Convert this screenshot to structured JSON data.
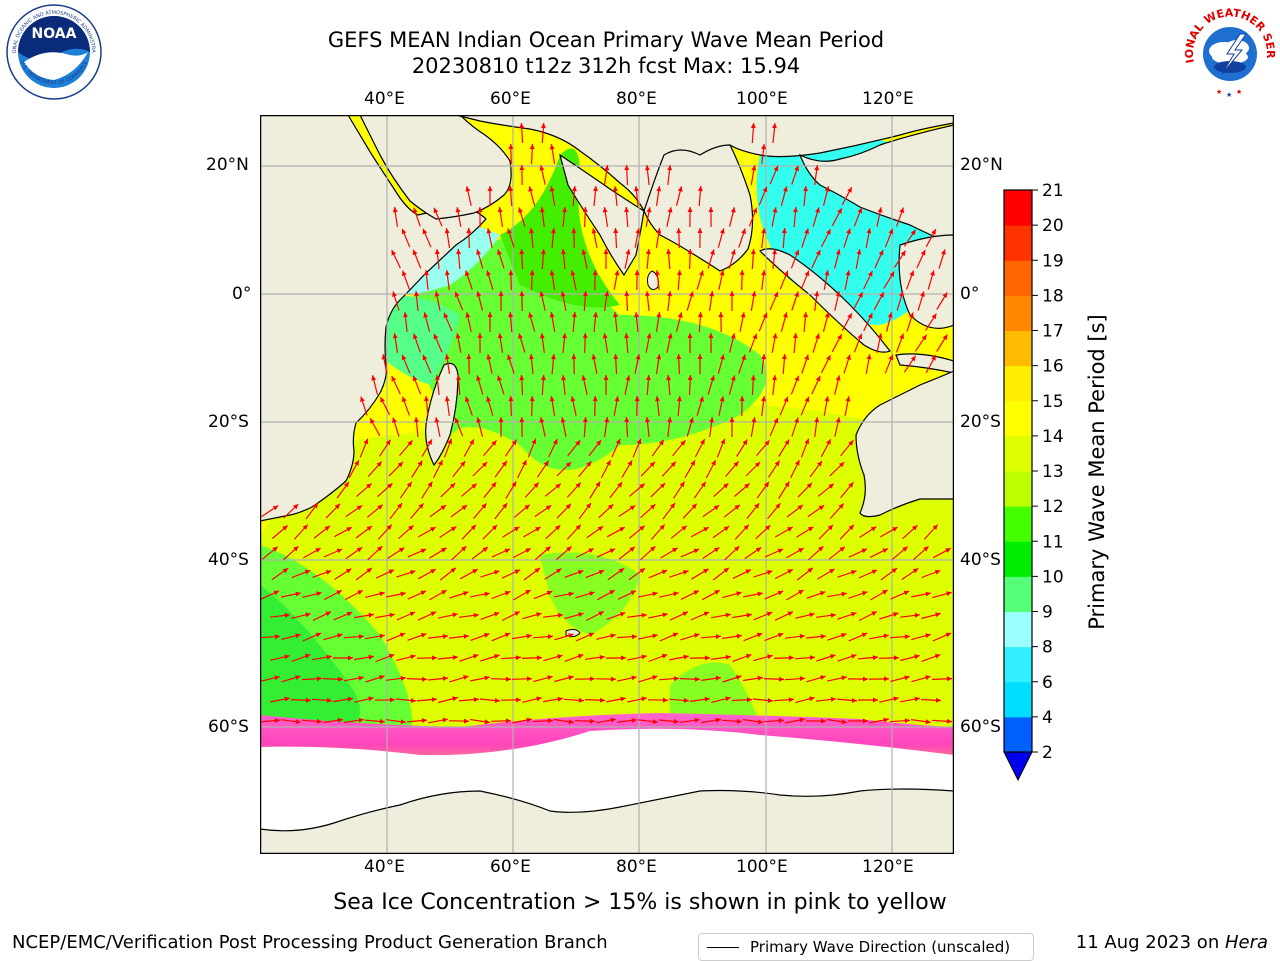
{
  "header": {
    "title_line1": "GEFS MEAN Indian Ocean Primary Wave Mean Period",
    "title_line2": "20230810 t12z 312h fcst   Max: 15.94"
  },
  "logos": {
    "noaa_text": "NOAA",
    "noaa_ring_top": "NATIONAL OCEANIC AND ATMOSPHERIC ADMINISTRATION",
    "noaa_ring_bottom": "U.S. DEPARTMENT OF COMMERCE",
    "nws_ring": "NATIONAL WEATHER SERVICE"
  },
  "map": {
    "lon_labels": [
      "40°E",
      "60°E",
      "80°E",
      "100°E",
      "120°E"
    ],
    "lat_labels": [
      "20°N",
      "0°",
      "20°S",
      "40°S",
      "60°S"
    ],
    "legend_label": "Primary Wave Direction (unscaled)",
    "colors": {
      "land": "#efeedc",
      "ice": "#ffffff",
      "arrow": "#ff0000",
      "grid": "#b0b0b0",
      "coast": "#000000"
    }
  },
  "colorbar": {
    "label": "Primary Wave Mean Period [s]",
    "ticks": [
      "2",
      "4",
      "6",
      "8",
      "9",
      "10",
      "11",
      "12",
      "13",
      "14",
      "15",
      "16",
      "17",
      "18",
      "19",
      "20",
      "21"
    ],
    "colors": [
      "#0060ff",
      "#00ddff",
      "#33eeff",
      "#99ffff",
      "#55ff77",
      "#00ee00",
      "#44ff00",
      "#bbff00",
      "#ddff00",
      "#ffff00",
      "#ffee00",
      "#ffbb00",
      "#ff8800",
      "#ff6600",
      "#ff3300",
      "#ff0000"
    ],
    "extend_color": "#0000ee"
  },
  "subtitle": "Sea Ice Concentration > 15% is shown in pink to yellow",
  "footer": {
    "left": "NCEP/EMC/Verification Post Processing Product Generation Branch",
    "right_prefix": "11 Aug 2023 on ",
    "right_host": "Hera"
  }
}
